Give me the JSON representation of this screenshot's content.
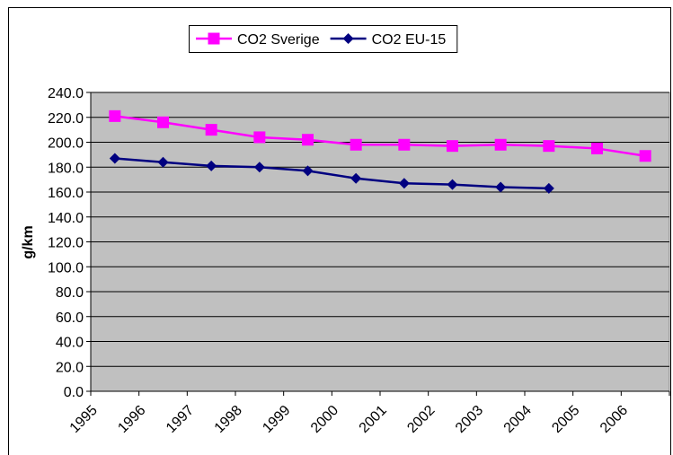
{
  "chart_data": {
    "type": "line",
    "y_label": "g/km",
    "categories": [
      "1995",
      "1996",
      "1997",
      "1998",
      "1999",
      "2000",
      "2001",
      "2002",
      "2003",
      "2004",
      "2005",
      "2006"
    ],
    "series": [
      {
        "name": "CO2 Sverige",
        "color": "#ff00ff",
        "marker": "square",
        "values": [
          221,
          216,
          210,
          204,
          202,
          198,
          198,
          197,
          198,
          197,
          195,
          189
        ]
      },
      {
        "name": "CO2 EU-15",
        "color": "#000080",
        "marker": "diamond",
        "values": [
          187,
          184,
          181,
          180,
          177,
          171,
          167,
          166,
          164,
          163,
          null,
          null
        ]
      }
    ],
    "ylim": [
      0,
      240
    ],
    "yticks": [
      {
        "value": 0,
        "label": "0.0"
      },
      {
        "value": 20,
        "label": "20.0"
      },
      {
        "value": 40,
        "label": "40.0"
      },
      {
        "value": 60,
        "label": "60.0"
      },
      {
        "value": 80,
        "label": "80.0"
      },
      {
        "value": 100,
        "label": "100.0"
      },
      {
        "value": 120,
        "label": "120.0"
      },
      {
        "value": 140,
        "label": "140.0"
      },
      {
        "value": 160,
        "label": "160.0"
      },
      {
        "value": 180,
        "label": "180.0"
      },
      {
        "value": 200,
        "label": "200.0"
      },
      {
        "value": 220,
        "label": "220.0"
      },
      {
        "value": 240,
        "label": "240.0"
      }
    ],
    "grid": true,
    "legend": "top",
    "plot_background": "#c0c0c0"
  }
}
